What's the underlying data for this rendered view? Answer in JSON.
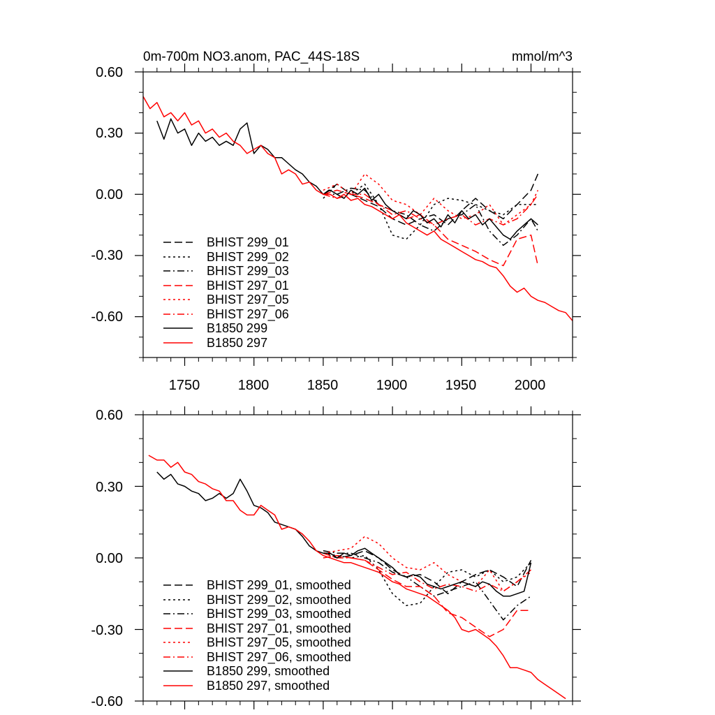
{
  "styles": {
    "black": "#000000",
    "red": "#ff0000"
  },
  "chart_data": [
    {
      "type": "line",
      "title": "0m-700m NO3.anom, PAC_44S-18S",
      "units": "mmol/m^3",
      "xlim": [
        1720,
        2030
      ],
      "ylim": [
        -0.8,
        0.6
      ],
      "xticks": [
        1750,
        1800,
        1850,
        1900,
        1950,
        2000
      ],
      "xtick_labels": [
        "1750",
        "1800",
        "1850",
        "1900",
        "1950",
        "2000"
      ],
      "yticks": [
        0.6,
        0.3,
        0.0,
        -0.3,
        -0.6
      ],
      "ytick_labels": [
        "0.60",
        "0.30",
        "0.00",
        "-0.30",
        "-0.60"
      ],
      "legend_position": "bottom-left",
      "series": [
        {
          "name": "BHIST 299_01",
          "color": "#000000",
          "dash": "dash",
          "x": [
            1850,
            1860,
            1870,
            1880,
            1890,
            1900,
            1910,
            1920,
            1930,
            1940,
            1950,
            1960,
            1970,
            1980,
            1990,
            2000,
            2005
          ],
          "y": [
            0.0,
            0.05,
            0.0,
            -0.03,
            -0.06,
            -0.12,
            -0.15,
            -0.12,
            -0.1,
            -0.15,
            -0.08,
            -0.02,
            -0.08,
            -0.12,
            -0.05,
            0.02,
            0.1
          ]
        },
        {
          "name": "BHIST 299_02",
          "color": "#000000",
          "dash": "dot",
          "x": [
            1850,
            1860,
            1870,
            1880,
            1890,
            1900,
            1910,
            1920,
            1930,
            1940,
            1950,
            1960,
            1970,
            1980,
            1990,
            2000,
            2005
          ],
          "y": [
            -0.02,
            0.05,
            0.0,
            0.05,
            -0.05,
            -0.2,
            -0.22,
            -0.15,
            -0.05,
            -0.02,
            -0.03,
            -0.05,
            -0.08,
            -0.1,
            -0.05,
            -0.05,
            -0.05
          ]
        },
        {
          "name": "BHIST 299_03",
          "color": "#000000",
          "dash": "dashdot",
          "x": [
            1850,
            1860,
            1870,
            1880,
            1890,
            1900,
            1910,
            1920,
            1930,
            1940,
            1950,
            1960,
            1970,
            1980,
            1990,
            2000,
            2005
          ],
          "y": [
            0.0,
            0.0,
            0.03,
            0.02,
            -0.05,
            -0.08,
            -0.1,
            -0.15,
            -0.18,
            -0.12,
            -0.1,
            -0.05,
            -0.18,
            -0.25,
            -0.2,
            -0.12,
            -0.18
          ]
        },
        {
          "name": "BHIST 297_01",
          "color": "#ff0000",
          "dash": "dash",
          "x": [
            1850,
            1860,
            1870,
            1880,
            1890,
            1900,
            1910,
            1920,
            1930,
            1940,
            1950,
            1960,
            1970,
            1980,
            1990,
            2000,
            2005
          ],
          "y": [
            0.0,
            0.02,
            0.0,
            -0.02,
            -0.05,
            -0.08,
            -0.12,
            -0.1,
            -0.15,
            -0.22,
            -0.25,
            -0.28,
            -0.32,
            -0.35,
            -0.22,
            -0.2,
            -0.35
          ]
        },
        {
          "name": "BHIST 297_05",
          "color": "#ff0000",
          "dash": "dot",
          "x": [
            1850,
            1860,
            1870,
            1880,
            1890,
            1900,
            1910,
            1920,
            1930,
            1940,
            1950,
            1960,
            1970,
            1980,
            1990,
            2000,
            2005
          ],
          "y": [
            0.02,
            0.05,
            0.0,
            0.1,
            0.05,
            -0.03,
            -0.05,
            -0.1,
            -0.02,
            -0.08,
            -0.12,
            -0.1,
            -0.05,
            -0.15,
            -0.1,
            -0.05,
            0.02
          ]
        },
        {
          "name": "BHIST 297_06",
          "color": "#ff0000",
          "dash": "dashdot",
          "x": [
            1850,
            1860,
            1870,
            1880,
            1890,
            1900,
            1910,
            1920,
            1930,
            1940,
            1950,
            1960,
            1970,
            1980,
            1990,
            2000,
            2005
          ],
          "y": [
            0.0,
            -0.02,
            0.0,
            0.0,
            -0.05,
            -0.1,
            -0.08,
            -0.12,
            -0.15,
            -0.12,
            -0.1,
            -0.15,
            -0.12,
            -0.15,
            -0.12,
            -0.05,
            0.0
          ]
        },
        {
          "name": "B1850 299",
          "color": "#000000",
          "dash": "solid",
          "x": [
            1730,
            1735,
            1740,
            1745,
            1750,
            1755,
            1760,
            1765,
            1770,
            1775,
            1780,
            1785,
            1790,
            1795,
            1800,
            1805,
            1810,
            1815,
            1820,
            1825,
            1830,
            1835,
            1840,
            1845,
            1850,
            1855,
            1860,
            1865,
            1870,
            1875,
            1880,
            1885,
            1890,
            1895,
            1900,
            1905,
            1910,
            1915,
            1920,
            1925,
            1930,
            1935,
            1940,
            1945,
            1950,
            1955,
            1960,
            1965,
            1970,
            1975,
            1980,
            1985,
            1990,
            1995,
            2000,
            2005
          ],
          "y": [
            0.36,
            0.27,
            0.37,
            0.3,
            0.32,
            0.24,
            0.3,
            0.26,
            0.28,
            0.24,
            0.26,
            0.24,
            0.32,
            0.35,
            0.2,
            0.24,
            0.22,
            0.18,
            0.18,
            0.15,
            0.12,
            0.1,
            0.06,
            0.04,
            0.0,
            0.02,
            0.0,
            -0.02,
            0.02,
            0.0,
            0.03,
            -0.03,
            0.0,
            -0.05,
            -0.08,
            -0.1,
            -0.12,
            -0.08,
            -0.1,
            -0.14,
            -0.12,
            -0.16,
            -0.1,
            -0.14,
            -0.08,
            -0.12,
            -0.1,
            -0.15,
            -0.12,
            -0.16,
            -0.2,
            -0.22,
            -0.18,
            -0.15,
            -0.12,
            -0.15
          ]
        },
        {
          "name": "B1850 297",
          "color": "#ff0000",
          "dash": "solid",
          "x": [
            1720,
            1725,
            1730,
            1735,
            1740,
            1745,
            1750,
            1755,
            1760,
            1765,
            1770,
            1775,
            1780,
            1785,
            1790,
            1795,
            1800,
            1805,
            1810,
            1815,
            1820,
            1825,
            1830,
            1835,
            1840,
            1845,
            1850,
            1855,
            1860,
            1865,
            1870,
            1875,
            1880,
            1885,
            1890,
            1895,
            1900,
            1905,
            1910,
            1915,
            1920,
            1925,
            1930,
            1935,
            1940,
            1945,
            1950,
            1955,
            1960,
            1965,
            1970,
            1975,
            1980,
            1985,
            1990,
            1995,
            2000,
            2005,
            2010,
            2015,
            2020,
            2025,
            2030
          ],
          "y": [
            0.48,
            0.42,
            0.45,
            0.38,
            0.4,
            0.36,
            0.4,
            0.34,
            0.36,
            0.3,
            0.32,
            0.28,
            0.3,
            0.26,
            0.24,
            0.2,
            0.22,
            0.24,
            0.2,
            0.18,
            0.1,
            0.12,
            0.1,
            0.05,
            0.06,
            0.02,
            0.0,
            0.0,
            -0.02,
            0.0,
            -0.03,
            -0.02,
            -0.05,
            -0.06,
            -0.08,
            -0.1,
            -0.12,
            -0.1,
            -0.14,
            -0.16,
            -0.18,
            -0.2,
            -0.18,
            -0.22,
            -0.24,
            -0.26,
            -0.28,
            -0.3,
            -0.32,
            -0.33,
            -0.35,
            -0.36,
            -0.4,
            -0.45,
            -0.48,
            -0.46,
            -0.5,
            -0.52,
            -0.53,
            -0.55,
            -0.57,
            -0.58,
            -0.62
          ]
        }
      ]
    },
    {
      "type": "line",
      "title": "",
      "xlim": [
        1720,
        2030
      ],
      "ylim": [
        -0.6,
        0.6
      ],
      "xticks": [
        1750,
        1800,
        1850,
        1900,
        1950,
        2000
      ],
      "yticks": [
        0.6,
        0.3,
        0.0,
        -0.3,
        -0.6
      ],
      "ytick_labels": [
        "0.60",
        "0.30",
        "0.00",
        "-0.30",
        "-0.60"
      ],
      "legend_position": "bottom-left",
      "series": [
        {
          "name": "BHIST 299_01, smoothed",
          "color": "#000000",
          "dash": "dash",
          "x": [
            1850,
            1860,
            1870,
            1880,
            1890,
            1900,
            1910,
            1920,
            1930,
            1940,
            1950,
            1960,
            1970,
            1980,
            1990,
            2000
          ],
          "y": [
            0.02,
            0.0,
            0.01,
            0.03,
            0.0,
            -0.05,
            -0.08,
            -0.07,
            -0.1,
            -0.15,
            -0.1,
            -0.07,
            -0.05,
            -0.08,
            -0.12,
            -0.01
          ]
        },
        {
          "name": "BHIST 299_02, smoothed",
          "color": "#000000",
          "dash": "dot",
          "x": [
            1850,
            1860,
            1870,
            1880,
            1890,
            1900,
            1910,
            1920,
            1930,
            1940,
            1950,
            1960,
            1970,
            1980,
            1990,
            2000
          ],
          "y": [
            0.02,
            0.01,
            0.0,
            0.01,
            -0.05,
            -0.15,
            -0.2,
            -0.19,
            -0.12,
            -0.06,
            -0.05,
            -0.08,
            -0.05,
            -0.1,
            -0.08,
            -0.02
          ]
        },
        {
          "name": "BHIST 299_03, smoothed",
          "color": "#000000",
          "dash": "dashdot",
          "x": [
            1850,
            1860,
            1870,
            1880,
            1890,
            1900,
            1910,
            1920,
            1930,
            1940,
            1950,
            1960,
            1970,
            1980,
            1990,
            2000
          ],
          "y": [
            0.03,
            0.02,
            0.02,
            0.0,
            -0.02,
            -0.06,
            -0.08,
            -0.12,
            -0.16,
            -0.14,
            -0.12,
            -0.1,
            -0.18,
            -0.26,
            -0.2,
            -0.16
          ]
        },
        {
          "name": "BHIST 297_01, smoothed",
          "color": "#ff0000",
          "dash": "dash",
          "x": [
            1850,
            1860,
            1870,
            1880,
            1890,
            1900,
            1910,
            1920,
            1930,
            1940,
            1950,
            1960,
            1970,
            1980,
            1990,
            2000
          ],
          "y": [
            0.0,
            0.01,
            0.0,
            -0.01,
            -0.05,
            -0.09,
            -0.12,
            -0.12,
            -0.16,
            -0.23,
            -0.25,
            -0.29,
            -0.33,
            -0.3,
            -0.22,
            -0.22
          ]
        },
        {
          "name": "BHIST 297_05, smoothed",
          "color": "#ff0000",
          "dash": "dot",
          "x": [
            1850,
            1860,
            1870,
            1880,
            1890,
            1900,
            1910,
            1920,
            1930,
            1940,
            1950,
            1960,
            1970,
            1980,
            1990,
            2000
          ],
          "y": [
            0.02,
            0.03,
            0.04,
            0.09,
            0.06,
            0.0,
            -0.04,
            -0.05,
            -0.02,
            -0.07,
            -0.1,
            -0.12,
            -0.05,
            -0.14,
            -0.1,
            -0.06
          ]
        },
        {
          "name": "BHIST 297_06, smoothed",
          "color": "#ff0000",
          "dash": "dashdot",
          "x": [
            1850,
            1860,
            1870,
            1880,
            1890,
            1900,
            1910,
            1920,
            1930,
            1940,
            1950,
            1960,
            1970,
            1980,
            1990,
            2000
          ],
          "y": [
            0.02,
            0.0,
            0.0,
            -0.01,
            -0.04,
            -0.07,
            -0.06,
            -0.1,
            -0.13,
            -0.11,
            -0.12,
            -0.14,
            -0.11,
            -0.14,
            -0.1,
            -0.05
          ]
        },
        {
          "name": "B1850 299, smoothed",
          "color": "#000000",
          "dash": "solid",
          "x": [
            1730,
            1735,
            1740,
            1745,
            1750,
            1755,
            1760,
            1765,
            1770,
            1775,
            1780,
            1785,
            1790,
            1795,
            1800,
            1805,
            1810,
            1815,
            1820,
            1825,
            1830,
            1835,
            1840,
            1845,
            1850,
            1855,
            1860,
            1865,
            1870,
            1875,
            1880,
            1885,
            1890,
            1895,
            1900,
            1905,
            1910,
            1915,
            1920,
            1925,
            1930,
            1935,
            1940,
            1945,
            1950,
            1955,
            1960,
            1965,
            1970,
            1975,
            1980,
            1985,
            1990,
            1995,
            2000
          ],
          "y": [
            0.36,
            0.33,
            0.35,
            0.31,
            0.3,
            0.28,
            0.27,
            0.24,
            0.25,
            0.27,
            0.25,
            0.27,
            0.33,
            0.28,
            0.22,
            0.21,
            0.19,
            0.15,
            0.14,
            0.13,
            0.12,
            0.09,
            0.05,
            0.03,
            0.02,
            0.02,
            0.0,
            0.02,
            0.01,
            0.03,
            0.04,
            0.02,
            0.0,
            -0.02,
            -0.04,
            -0.07,
            -0.08,
            -0.07,
            -0.08,
            -0.11,
            -0.12,
            -0.13,
            -0.12,
            -0.11,
            -0.1,
            -0.11,
            -0.12,
            -0.1,
            -0.11,
            -0.14,
            -0.16,
            -0.16,
            -0.15,
            -0.14,
            -0.02
          ]
        },
        {
          "name": "B1850 297, smoothed",
          "color": "#ff0000",
          "dash": "solid",
          "x": [
            1724,
            1730,
            1735,
            1740,
            1745,
            1750,
            1755,
            1760,
            1765,
            1770,
            1775,
            1780,
            1785,
            1790,
            1795,
            1800,
            1805,
            1810,
            1815,
            1820,
            1825,
            1830,
            1835,
            1840,
            1845,
            1850,
            1855,
            1860,
            1865,
            1870,
            1875,
            1880,
            1885,
            1890,
            1895,
            1900,
            1905,
            1910,
            1915,
            1920,
            1925,
            1930,
            1935,
            1940,
            1945,
            1950,
            1955,
            1960,
            1965,
            1970,
            1975,
            1980,
            1985,
            1990,
            1995,
            2000,
            2005,
            2010,
            2015,
            2020,
            2025
          ],
          "y": [
            0.43,
            0.41,
            0.41,
            0.38,
            0.4,
            0.36,
            0.35,
            0.32,
            0.31,
            0.29,
            0.28,
            0.24,
            0.24,
            0.2,
            0.18,
            0.18,
            0.22,
            0.2,
            0.18,
            0.12,
            0.13,
            0.12,
            0.1,
            0.07,
            0.03,
            0.01,
            0.0,
            -0.01,
            -0.02,
            -0.02,
            -0.03,
            -0.04,
            -0.05,
            -0.06,
            -0.08,
            -0.1,
            -0.11,
            -0.13,
            -0.14,
            -0.15,
            -0.16,
            -0.18,
            -0.2,
            -0.22,
            -0.25,
            -0.3,
            -0.31,
            -0.3,
            -0.32,
            -0.34,
            -0.37,
            -0.41,
            -0.46,
            -0.46,
            -0.47,
            -0.48,
            -0.51,
            -0.53,
            -0.55,
            -0.57,
            -0.59
          ]
        }
      ]
    }
  ]
}
